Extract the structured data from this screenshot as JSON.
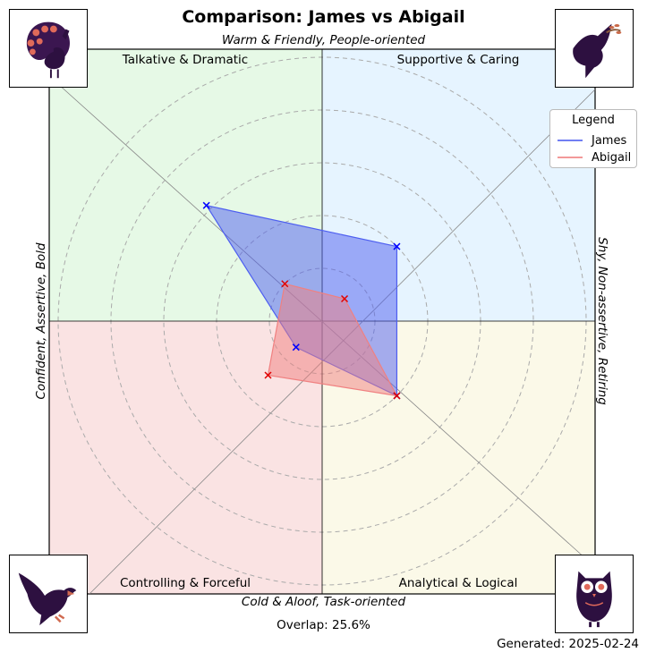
{
  "chart_data": {
    "type": "radar",
    "title": "Comparison: James vs Abigail",
    "axis_labels": {
      "top": "Warm & Friendly, People-oriented",
      "bottom": "Cold & Aloof, Task-oriented",
      "left": "Confident, Assertive, Bold",
      "right": "Shy, Non-assertive, Retiring"
    },
    "quadrants": [
      {
        "name": "Talkative & Dramatic",
        "position": "top-left",
        "color": "#e6f9e6",
        "icon": "peacock-icon"
      },
      {
        "name": "Supportive & Caring",
        "position": "top-right",
        "color": "#e6f4ff",
        "icon": "dove-icon"
      },
      {
        "name": "Controlling & Forceful",
        "position": "bottom-left",
        "color": "#fae3e3",
        "icon": "eagle-icon"
      },
      {
        "name": "Analytical & Logical",
        "position": "bottom-right",
        "color": "#fbf9e8",
        "icon": "owl-icon"
      }
    ],
    "directions": [
      "top-left",
      "top-right",
      "bottom-right",
      "bottom-left"
    ],
    "range": [
      0,
      5
    ],
    "rings": [
      1,
      2,
      3,
      4,
      5
    ],
    "grid": true,
    "legend": {
      "title": "Legend",
      "placement": "top-right"
    },
    "series": [
      {
        "name": "James",
        "color": "#4d5ef0",
        "values": [
          3.1,
          2.0,
          2.0,
          0.7
        ]
      },
      {
        "name": "Abigail",
        "color": "#f08080",
        "values": [
          1.0,
          0.6,
          2.0,
          1.45
        ]
      }
    ],
    "overlap_text": "Overlap: 25.6%",
    "generated_text": "Generated: 2025-02-24"
  }
}
